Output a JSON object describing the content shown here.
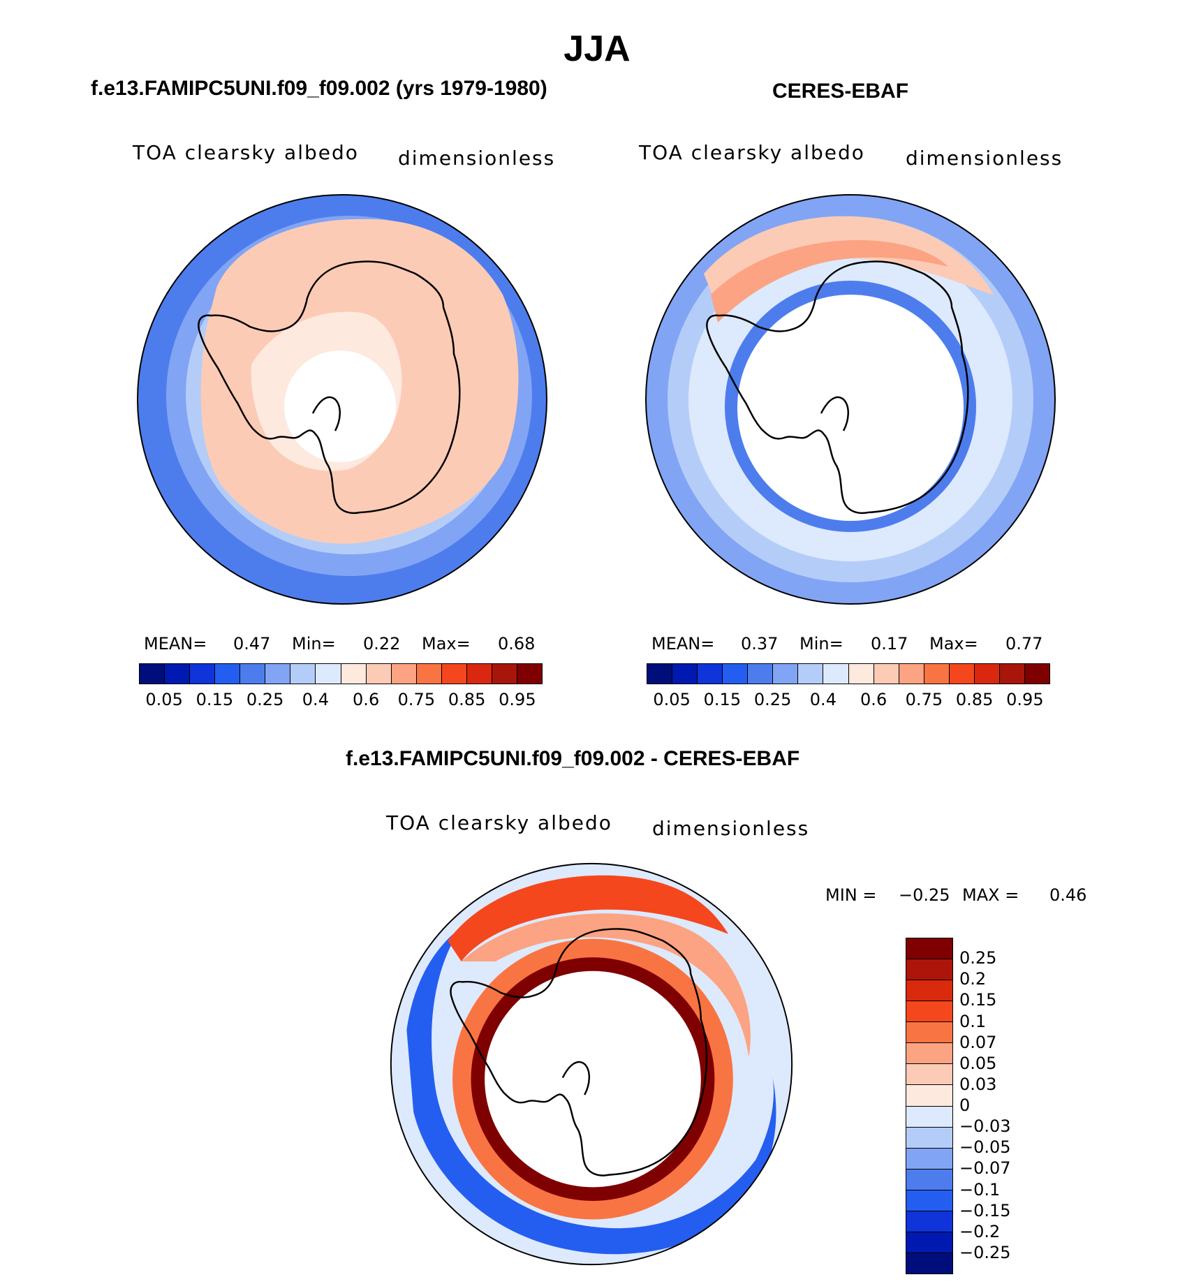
{
  "figure": {
    "title": "JJA"
  },
  "panels": {
    "model": {
      "title": "f.e13.FAMIPC5UNI.f09_f09.002 (yrs 1979-1980)",
      "variable": "TOA clearsky albedo",
      "units": "dimensionless",
      "stats": {
        "mean_label": "MEAN=",
        "mean": "0.47",
        "min_label": "Min=",
        "min": "0.22",
        "max_label": "Max=",
        "max": "0.68"
      }
    },
    "obs": {
      "title": "CERES-EBAF",
      "variable": "TOA clearsky albedo",
      "units": "dimensionless",
      "stats": {
        "mean_label": "MEAN=",
        "mean": "0.37",
        "min_label": "Min=",
        "min": "0.17",
        "max_label": "Max=",
        "max": "0.77"
      }
    },
    "diff": {
      "title": "f.e13.FAMIPC5UNI.f09_f09.002 - CERES-EBAF",
      "variable": "TOA clearsky albedo",
      "units": "dimensionless",
      "stats": {
        "min_label": "MIN =",
        "min": "−0.25",
        "max_label": "MAX =",
        "max": "0.46"
      }
    }
  },
  "colorbars": {
    "abs": {
      "colors": [
        "#000e7c",
        "#0019b0",
        "#0f34d9",
        "#245ef0",
        "#4d7ded",
        "#82a4f4",
        "#b4cdf8",
        "#dde9fc",
        "#fde9de",
        "#fccbb6",
        "#fba382",
        "#f97443",
        "#f5471d",
        "#d9280f",
        "#a8150a",
        "#7f0000"
      ],
      "tick_labels": [
        "0.05",
        "0.15",
        "0.25",
        "0.4",
        "0.6",
        "0.75",
        "0.85",
        "0.95"
      ]
    },
    "diff": {
      "colors": [
        "#7f0000",
        "#ad150a",
        "#da2a0e",
        "#f5471d",
        "#f97443",
        "#fba382",
        "#fccbb6",
        "#fde9de",
        "#dde9fc",
        "#b4cdf8",
        "#82a4f4",
        "#4d7ded",
        "#245ef0",
        "#0f34d9",
        "#0019b0",
        "#000e7c"
      ],
      "tick_labels": [
        "0.25",
        "0.2",
        "0.15",
        "0.1",
        "0.07",
        "0.05",
        "0.03",
        "0",
        "−0.03",
        "−0.05",
        "−0.07",
        "−0.1",
        "−0.15",
        "−0.2",
        "−0.25"
      ]
    }
  }
}
